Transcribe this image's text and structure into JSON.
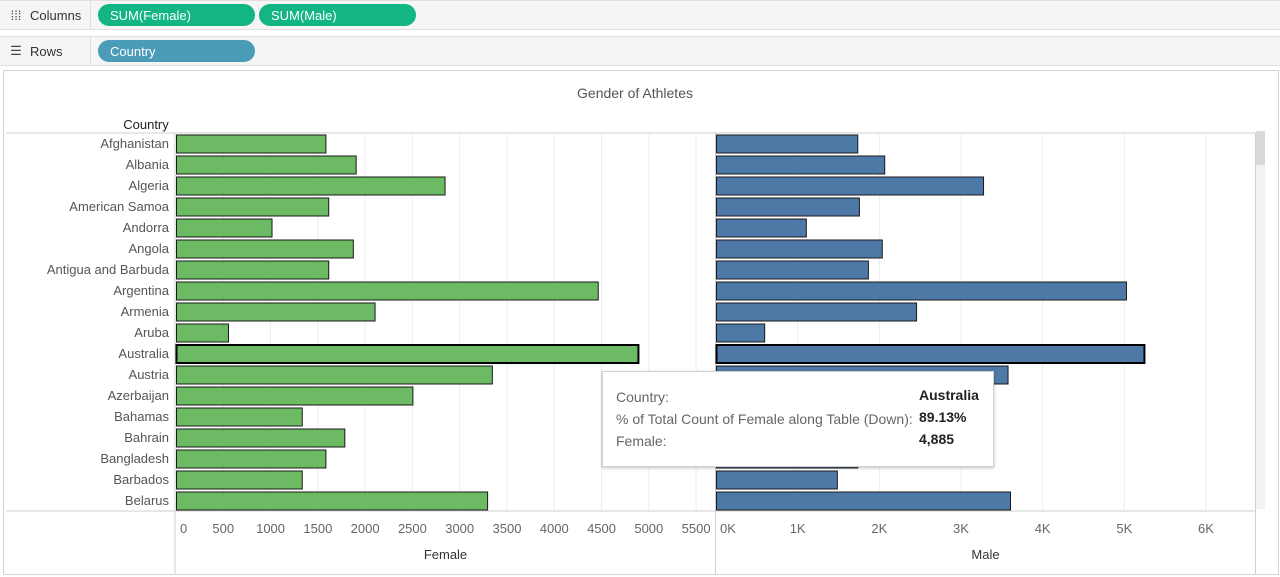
{
  "shelves": {
    "columns": {
      "label": "Columns",
      "icon": "columns-icon",
      "pills": [
        "SUM(Female)",
        "SUM(Male)"
      ]
    },
    "rows": {
      "label": "Rows",
      "icon": "rows-icon",
      "pills": [
        "Country"
      ]
    }
  },
  "colors": {
    "female_bar": "#6cba63",
    "male_bar": "#4e79a7",
    "pill_green": "#12b583",
    "pill_blue": "#4a9cb8"
  },
  "chart_data": {
    "type": "bar",
    "title": "Gender of Athletes",
    "row_header": "Country",
    "categories": [
      "Afghanistan",
      "Albania",
      "Algeria",
      "American Samoa",
      "Andorra",
      "Angola",
      "Antigua and Barbuda",
      "Argentina",
      "Armenia",
      "Aruba",
      "Australia",
      "Austria",
      "Azerbaijan",
      "Bahamas",
      "Bahrain",
      "Bangladesh",
      "Barbados",
      "Belarus"
    ],
    "series": [
      {
        "name": "Female",
        "values": [
          1580,
          1900,
          2840,
          1610,
          1010,
          1870,
          1610,
          4460,
          2100,
          550,
          4885,
          3340,
          2500,
          1330,
          1780,
          1580,
          1330,
          3290
        ],
        "xlim": [
          0,
          5700
        ],
        "ticks": [
          "0",
          "500",
          "1000",
          "1500",
          "2000",
          "2500",
          "3000",
          "3500",
          "4000",
          "4500",
          "5000",
          "5500"
        ],
        "xlabel": "Female"
      },
      {
        "name": "Male",
        "values": [
          1730,
          2060,
          3270,
          1750,
          1100,
          2030,
          1860,
          5020,
          2450,
          590,
          5240,
          3570,
          2400,
          1750,
          1650,
          1730,
          1480,
          3600
        ],
        "xlim": [
          0,
          6600
        ],
        "ticks": [
          "0K",
          "1K",
          "2K",
          "3K",
          "4K",
          "5K",
          "6K"
        ],
        "xlabel": "Male"
      }
    ],
    "highlighted": "Australia",
    "grid": true
  },
  "tooltip": {
    "country_label": "Country:",
    "country_value": "Australia",
    "pct_label": "% of Total Count of Female along Table (Down):",
    "pct_value": "89.13%",
    "female_label": "Female:",
    "female_value": "4,885"
  }
}
